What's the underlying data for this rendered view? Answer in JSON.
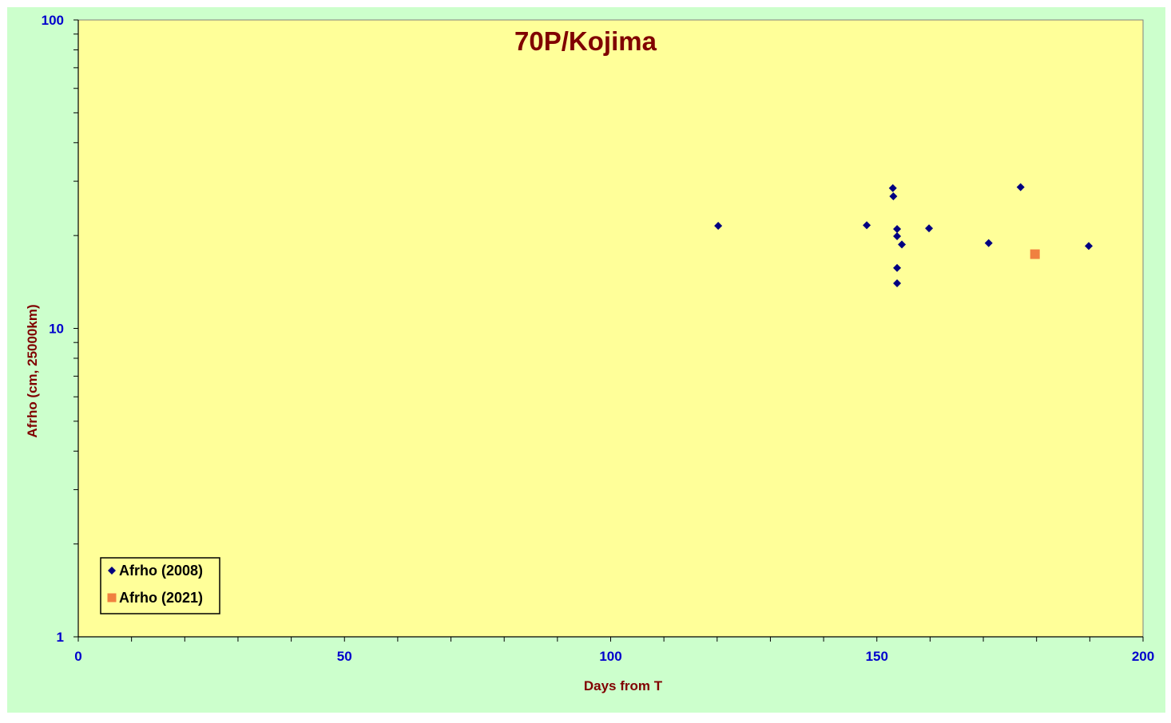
{
  "chart_data": {
    "type": "scatter",
    "title": "70P/Kojima",
    "xlabel": "Days from T",
    "ylabel": "Afrho (cm, 25000km)",
    "xlim": [
      0,
      200
    ],
    "ylim": [
      1,
      100
    ],
    "yscale": "log",
    "x_ticks": [
      "0",
      "50",
      "100",
      "150",
      "200"
    ],
    "y_ticks": [
      "1",
      "10",
      "100"
    ],
    "grid": false,
    "legend_position": "bottom-left",
    "colors": {
      "outer_background": "#ccffcc",
      "plot_background": "#ffff99",
      "axis": "#000000"
    },
    "series": [
      {
        "name": "Afrho (2008)",
        "marker": "diamond",
        "color": "#000080",
        "points": [
          {
            "x": 120.2,
            "y": 21.5
          },
          {
            "x": 148.1,
            "y": 21.6
          },
          {
            "x": 153.0,
            "y": 28.5
          },
          {
            "x": 153.1,
            "y": 26.8
          },
          {
            "x": 153.8,
            "y": 21.0
          },
          {
            "x": 153.8,
            "y": 19.9
          },
          {
            "x": 154.7,
            "y": 18.7
          },
          {
            "x": 153.8,
            "y": 15.7
          },
          {
            "x": 153.8,
            "y": 14.0
          },
          {
            "x": 159.8,
            "y": 21.1
          },
          {
            "x": 171.0,
            "y": 18.9
          },
          {
            "x": 177.0,
            "y": 28.7
          },
          {
            "x": 189.8,
            "y": 18.5
          }
        ]
      },
      {
        "name": "Afrho (2021)",
        "marker": "square",
        "color": "#f08040",
        "points": [
          {
            "x": 179.7,
            "y": 17.4
          }
        ]
      }
    ]
  }
}
